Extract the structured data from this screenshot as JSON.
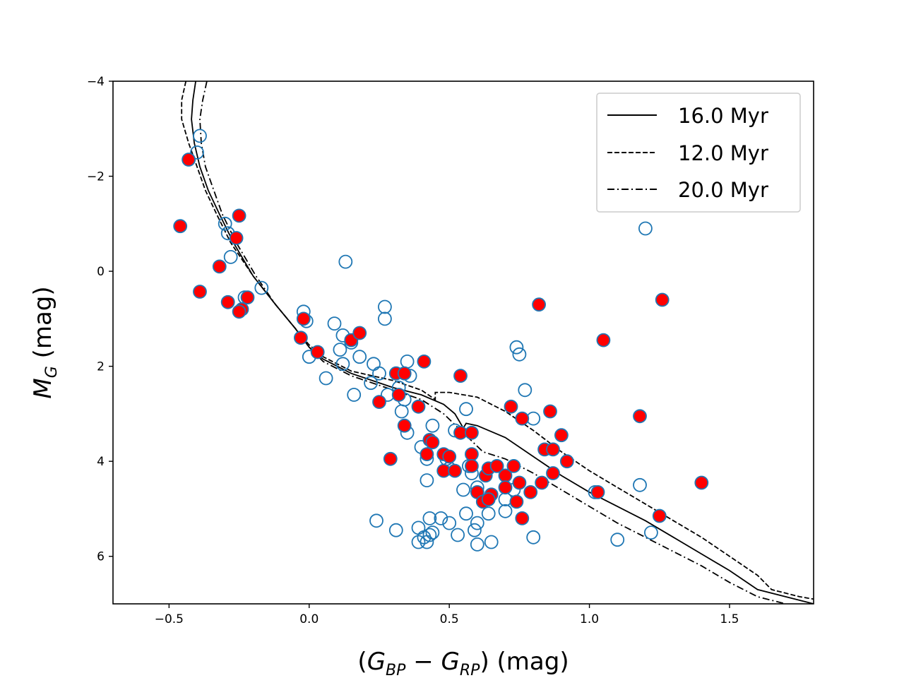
{
  "chart_data": {
    "type": "scatter",
    "title": "",
    "xlabel": "(G_BP − G_RP) (mag)",
    "xlabel_parts": {
      "open": "(",
      "g1": "G",
      "sub1": "BP",
      "minus": " − ",
      "g2": "G",
      "sub2": "RP",
      "close": ")",
      "unit": " (mag)"
    },
    "ylabel": "M_G (mag)",
    "ylabel_parts": {
      "m": "M",
      "sub": "G",
      "unit": " (mag)"
    },
    "xlim": [
      -0.7,
      1.8
    ],
    "ylim": [
      7,
      -4
    ],
    "y_inverted": true,
    "xticks": [
      -0.5,
      0.0,
      0.5,
      1.0,
      1.5
    ],
    "xtick_labels": [
      "−0.5",
      "0.0",
      "0.5",
      "1.0",
      "1.5"
    ],
    "yticks": [
      -4,
      -2,
      0,
      2,
      4,
      6
    ],
    "ytick_labels": [
      "−4",
      "−2",
      "0",
      "2",
      "4",
      "6"
    ],
    "grid": false,
    "legend_position": "top-right",
    "colors": {
      "open": "#1f77b4",
      "member": "#ff0000",
      "isochrone": "#000000"
    },
    "isochrones": [
      {
        "name": "16.0 Myr",
        "style": "solid",
        "points": [
          [
            -0.405,
            -4.0
          ],
          [
            -0.415,
            -3.6
          ],
          [
            -0.42,
            -3.2
          ],
          [
            -0.41,
            -2.7
          ],
          [
            -0.39,
            -2.2
          ],
          [
            -0.36,
            -1.7
          ],
          [
            -0.32,
            -1.2
          ],
          [
            -0.27,
            -0.6
          ],
          [
            -0.2,
            0.1
          ],
          [
            -0.12,
            0.7
          ],
          [
            -0.05,
            1.2
          ],
          [
            0.0,
            1.6
          ],
          [
            0.05,
            1.85
          ],
          [
            0.15,
            2.15
          ],
          [
            0.3,
            2.45
          ],
          [
            0.4,
            2.6
          ],
          [
            0.48,
            2.8
          ],
          [
            0.52,
            3.0
          ],
          [
            0.55,
            3.3
          ],
          [
            0.56,
            3.2
          ],
          [
            0.6,
            3.25
          ],
          [
            0.7,
            3.5
          ],
          [
            0.8,
            3.9
          ],
          [
            0.9,
            4.3
          ],
          [
            1.0,
            4.65
          ],
          [
            1.1,
            4.95
          ],
          [
            1.2,
            5.25
          ],
          [
            1.3,
            5.6
          ],
          [
            1.4,
            5.95
          ],
          [
            1.5,
            6.3
          ],
          [
            1.6,
            6.7
          ],
          [
            1.7,
            6.85
          ],
          [
            1.8,
            7.0
          ]
        ]
      },
      {
        "name": "12.0 Myr",
        "style": "dashed",
        "points": [
          [
            -0.44,
            -4.0
          ],
          [
            -0.455,
            -3.6
          ],
          [
            -0.455,
            -3.2
          ],
          [
            -0.43,
            -2.7
          ],
          [
            -0.4,
            -2.2
          ],
          [
            -0.37,
            -1.7
          ],
          [
            -0.33,
            -1.2
          ],
          [
            -0.28,
            -0.6
          ],
          [
            -0.2,
            0.1
          ],
          [
            -0.12,
            0.7
          ],
          [
            -0.05,
            1.2
          ],
          [
            0.0,
            1.55
          ],
          [
            0.05,
            1.8
          ],
          [
            0.15,
            2.1
          ],
          [
            0.3,
            2.3
          ],
          [
            0.4,
            2.5
          ],
          [
            0.45,
            2.7
          ],
          [
            0.45,
            2.55
          ],
          [
            0.5,
            2.55
          ],
          [
            0.6,
            2.65
          ],
          [
            0.7,
            2.95
          ],
          [
            0.8,
            3.35
          ],
          [
            0.9,
            3.8
          ],
          [
            1.0,
            4.2
          ],
          [
            1.1,
            4.55
          ],
          [
            1.2,
            4.9
          ],
          [
            1.3,
            5.25
          ],
          [
            1.4,
            5.6
          ],
          [
            1.5,
            6.0
          ],
          [
            1.6,
            6.4
          ],
          [
            1.65,
            6.7
          ],
          [
            1.75,
            6.85
          ],
          [
            1.8,
            6.9
          ]
        ]
      },
      {
        "name": "20.0 Myr",
        "style": "dashdot",
        "points": [
          [
            -0.365,
            -4.0
          ],
          [
            -0.38,
            -3.6
          ],
          [
            -0.39,
            -3.2
          ],
          [
            -0.385,
            -2.7
          ],
          [
            -0.37,
            -2.2
          ],
          [
            -0.34,
            -1.7
          ],
          [
            -0.31,
            -1.2
          ],
          [
            -0.26,
            -0.6
          ],
          [
            -0.19,
            0.1
          ],
          [
            -0.12,
            0.7
          ],
          [
            -0.05,
            1.2
          ],
          [
            0.0,
            1.6
          ],
          [
            0.05,
            1.9
          ],
          [
            0.15,
            2.2
          ],
          [
            0.3,
            2.5
          ],
          [
            0.4,
            2.7
          ],
          [
            0.48,
            3.0
          ],
          [
            0.55,
            3.4
          ],
          [
            0.62,
            3.8
          ],
          [
            0.7,
            3.95
          ],
          [
            0.8,
            4.25
          ],
          [
            0.9,
            4.6
          ],
          [
            1.0,
            4.95
          ],
          [
            1.1,
            5.3
          ],
          [
            1.2,
            5.6
          ],
          [
            1.3,
            5.9
          ],
          [
            1.4,
            6.2
          ],
          [
            1.5,
            6.55
          ],
          [
            1.6,
            6.85
          ],
          [
            1.7,
            7.0
          ]
        ]
      }
    ],
    "open_points": [
      [
        -0.39,
        -2.85
      ],
      [
        -0.4,
        -2.5
      ],
      [
        -0.3,
        -1.0
      ],
      [
        -0.29,
        -0.8
      ],
      [
        -0.28,
        -0.3
      ],
      [
        -0.17,
        0.35
      ],
      [
        -0.23,
        0.55
      ],
      [
        -0.02,
        0.85
      ],
      [
        -0.01,
        1.05
      ],
      [
        0.09,
        1.1
      ],
      [
        0.13,
        -0.2
      ],
      [
        0.27,
        0.75
      ],
      [
        0.27,
        1.0
      ],
      [
        0.12,
        1.35
      ],
      [
        0.15,
        1.5
      ],
      [
        0.18,
        1.8
      ],
      [
        0.12,
        1.95
      ],
      [
        0.11,
        1.65
      ],
      [
        0.0,
        1.8
      ],
      [
        0.06,
        2.25
      ],
      [
        0.16,
        2.6
      ],
      [
        0.23,
        1.95
      ],
      [
        0.22,
        2.35
      ],
      [
        0.25,
        2.15
      ],
      [
        0.28,
        2.6
      ],
      [
        0.35,
        1.9
      ],
      [
        0.36,
        2.2
      ],
      [
        0.32,
        2.45
      ],
      [
        0.34,
        2.7
      ],
      [
        0.33,
        2.95
      ],
      [
        0.35,
        3.4
      ],
      [
        0.44,
        3.25
      ],
      [
        0.4,
        3.7
      ],
      [
        0.42,
        3.95
      ],
      [
        0.42,
        4.4
      ],
      [
        0.49,
        3.95
      ],
      [
        0.52,
        3.35
      ],
      [
        0.56,
        2.9
      ],
      [
        0.5,
        4.15
      ],
      [
        0.57,
        4.1
      ],
      [
        0.58,
        4.25
      ],
      [
        0.55,
        4.6
      ],
      [
        0.6,
        4.55
      ],
      [
        0.64,
        4.8
      ],
      [
        0.7,
        4.8
      ],
      [
        0.73,
        4.6
      ],
      [
        0.74,
        1.6
      ],
      [
        0.75,
        1.75
      ],
      [
        0.77,
        2.5
      ],
      [
        0.8,
        3.1
      ],
      [
        0.56,
        5.1
      ],
      [
        0.6,
        5.3
      ],
      [
        0.64,
        5.1
      ],
      [
        0.7,
        5.05
      ],
      [
        0.59,
        5.45
      ],
      [
        0.65,
        5.7
      ],
      [
        0.6,
        5.75
      ],
      [
        0.53,
        5.55
      ],
      [
        0.5,
        5.3
      ],
      [
        0.47,
        5.2
      ],
      [
        0.43,
        5.2
      ],
      [
        0.41,
        5.6
      ],
      [
        0.42,
        5.7
      ],
      [
        0.43,
        5.55
      ],
      [
        0.44,
        5.5
      ],
      [
        0.39,
        5.4
      ],
      [
        0.39,
        5.7
      ],
      [
        0.31,
        5.45
      ],
      [
        0.24,
        5.25
      ],
      [
        0.8,
        5.6
      ],
      [
        1.02,
        4.65
      ],
      [
        1.1,
        5.65
      ],
      [
        1.18,
        4.5
      ],
      [
        1.22,
        5.5
      ],
      [
        1.2,
        -0.9
      ]
    ],
    "member_points": [
      [
        -0.43,
        -2.35
      ],
      [
        -0.46,
        -0.95
      ],
      [
        -0.25,
        -1.17
      ],
      [
        -0.26,
        -0.7
      ],
      [
        -0.32,
        -0.1
      ],
      [
        -0.39,
        0.43
      ],
      [
        -0.29,
        0.65
      ],
      [
        -0.22,
        0.55
      ],
      [
        -0.24,
        0.8
      ],
      [
        -0.25,
        0.85
      ],
      [
        -0.02,
        1.0
      ],
      [
        -0.03,
        1.4
      ],
      [
        0.03,
        1.7
      ],
      [
        0.15,
        1.45
      ],
      [
        0.18,
        1.3
      ],
      [
        0.25,
        2.75
      ],
      [
        0.29,
        3.95
      ],
      [
        0.31,
        2.15
      ],
      [
        0.34,
        2.15
      ],
      [
        0.32,
        2.6
      ],
      [
        0.34,
        3.25
      ],
      [
        0.39,
        2.85
      ],
      [
        0.41,
        1.9
      ],
      [
        0.42,
        3.85
      ],
      [
        0.43,
        3.55
      ],
      [
        0.44,
        3.6
      ],
      [
        0.48,
        3.85
      ],
      [
        0.48,
        4.2
      ],
      [
        0.5,
        3.9
      ],
      [
        0.52,
        4.2
      ],
      [
        0.54,
        3.4
      ],
      [
        0.54,
        2.2
      ],
      [
        0.58,
        3.4
      ],
      [
        0.58,
        3.85
      ],
      [
        0.58,
        4.1
      ],
      [
        0.6,
        4.65
      ],
      [
        0.62,
        4.85
      ],
      [
        0.63,
        4.3
      ],
      [
        0.64,
        4.15
      ],
      [
        0.65,
        4.7
      ],
      [
        0.64,
        4.8
      ],
      [
        0.67,
        4.1
      ],
      [
        0.7,
        4.3
      ],
      [
        0.7,
        4.55
      ],
      [
        0.72,
        2.85
      ],
      [
        0.73,
        4.1
      ],
      [
        0.74,
        4.85
      ],
      [
        0.75,
        4.45
      ],
      [
        0.76,
        5.2
      ],
      [
        0.76,
        3.1
      ],
      [
        0.79,
        4.65
      ],
      [
        0.82,
        0.7
      ],
      [
        0.83,
        4.45
      ],
      [
        0.84,
        3.75
      ],
      [
        0.86,
        2.95
      ],
      [
        0.87,
        4.25
      ],
      [
        0.87,
        3.75
      ],
      [
        0.9,
        3.45
      ],
      [
        0.92,
        4.0
      ],
      [
        1.03,
        4.65
      ],
      [
        1.05,
        1.45
      ],
      [
        1.18,
        3.05
      ],
      [
        1.25,
        5.15
      ],
      [
        1.26,
        0.6
      ],
      [
        1.4,
        4.45
      ]
    ]
  }
}
